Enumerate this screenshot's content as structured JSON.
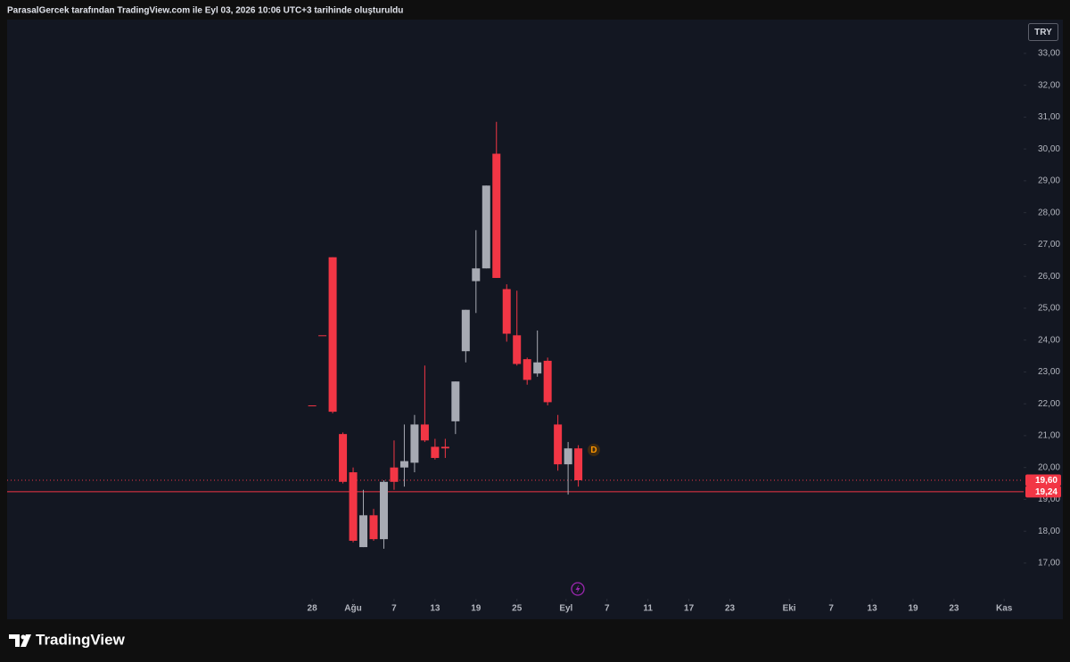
{
  "header": "ParasalGercek tarafından TradingView.com ile Eyl 03, 2026 10:06 UTC+3 tarihinde oluşturuldu",
  "footer": "TradingView",
  "chart_data": {
    "type": "candlestick",
    "currency": "TRY",
    "marker": "D",
    "up_color": "#a7aab3",
    "down_color": "#f23645",
    "open": [
      21.95,
      24.15,
      26.6,
      21.05,
      19.85,
      17.5,
      18.5,
      17.75,
      20.0,
      20.0,
      20.15,
      21.35,
      20.65,
      20.65,
      21.45,
      23.65,
      25.85,
      26.25,
      29.85,
      25.6,
      24.15,
      23.4,
      22.95,
      23.35,
      21.35,
      20.1,
      20.6
    ],
    "high": [
      21.95,
      24.15,
      26.6,
      21.1,
      20.0,
      19.3,
      18.7,
      19.6,
      20.85,
      21.35,
      21.65,
      23.2,
      20.9,
      20.9,
      22.7,
      24.95,
      27.45,
      28.85,
      30.85,
      25.75,
      25.55,
      23.45,
      24.3,
      23.45,
      21.65,
      20.8,
      20.7
    ],
    "low": [
      21.95,
      24.15,
      21.7,
      19.5,
      17.65,
      17.5,
      17.7,
      17.45,
      19.3,
      19.4,
      19.85,
      20.8,
      20.25,
      20.3,
      21.05,
      23.3,
      24.85,
      26.25,
      25.95,
      23.95,
      23.2,
      22.6,
      22.85,
      21.95,
      19.9,
      19.15,
      19.4
    ],
    "close": [
      21.95,
      24.15,
      21.75,
      19.55,
      17.7,
      18.5,
      17.75,
      19.55,
      19.55,
      20.2,
      21.35,
      20.85,
      20.3,
      20.6,
      22.7,
      24.95,
      26.25,
      28.85,
      25.95,
      24.2,
      23.25,
      22.75,
      23.3,
      22.05,
      20.1,
      20.6,
      19.6
    ],
    "last_price": {
      "value": 19.6,
      "label": "19,60"
    },
    "price_line": {
      "value": 19.24,
      "label": "19,24"
    },
    "ylim": [
      15.88,
      34.06
    ],
    "yticks": [
      {
        "value": 33,
        "label": "33,00"
      },
      {
        "value": 32,
        "label": "32,00"
      },
      {
        "value": 31,
        "label": "31,00"
      },
      {
        "value": 30,
        "label": "30,00"
      },
      {
        "value": 29,
        "label": "29,00"
      },
      {
        "value": 28,
        "label": "28,00"
      },
      {
        "value": 27,
        "label": "27,00"
      },
      {
        "value": 26,
        "label": "26,00"
      },
      {
        "value": 25,
        "label": "25,00"
      },
      {
        "value": 24,
        "label": "24,00"
      },
      {
        "value": 23,
        "label": "23,00"
      },
      {
        "value": 22,
        "label": "22,00"
      },
      {
        "value": 21,
        "label": "21,00"
      },
      {
        "value": 20,
        "label": "20,00"
      },
      {
        "value": 19,
        "label": "19,00"
      },
      {
        "value": 18,
        "label": "18,00"
      },
      {
        "value": 17,
        "label": "17,00"
      }
    ],
    "xlim": [
      -29.8,
      69.5
    ],
    "xticks": [
      {
        "value": 0,
        "label": "28"
      },
      {
        "value": 4,
        "label": "Ağu"
      },
      {
        "value": 8,
        "label": "7"
      },
      {
        "value": 12,
        "label": "13"
      },
      {
        "value": 16,
        "label": "19"
      },
      {
        "value": 20,
        "label": "25"
      },
      {
        "value": 24.8,
        "label": "Eyl"
      },
      {
        "value": 28.8,
        "label": "7"
      },
      {
        "value": 32.8,
        "label": "11"
      },
      {
        "value": 36.8,
        "label": "17"
      },
      {
        "value": 40.8,
        "label": "23"
      },
      {
        "value": 46.6,
        "label": "Eki"
      },
      {
        "value": 50.7,
        "label": "7"
      },
      {
        "value": 54.7,
        "label": "13"
      },
      {
        "value": 58.7,
        "label": "19"
      },
      {
        "value": 62.7,
        "label": "23"
      },
      {
        "value": 67.6,
        "label": "Kas"
      }
    ]
  }
}
